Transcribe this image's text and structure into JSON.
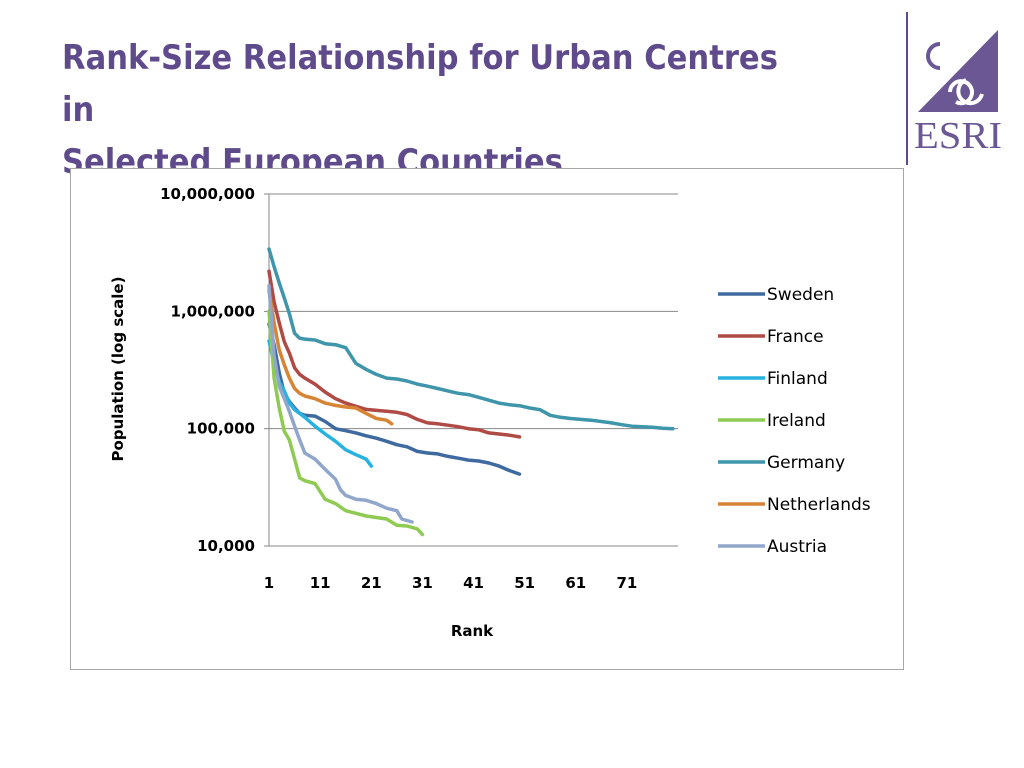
{
  "slide": {
    "title_line1": "Rank-Size Relationship for Urban Centres in",
    "title_line2": "Selected European Countries"
  },
  "logo": {
    "text": "ESRI",
    "color": "#6a5793"
  },
  "chart_data": {
    "type": "line",
    "title": "",
    "xlabel": "Rank",
    "ylabel": "Population (log scale)",
    "xlim": [
      1,
      81
    ],
    "ylim": [
      10000,
      10000000
    ],
    "y_scale": "log",
    "x_ticks": [
      1,
      11,
      21,
      31,
      41,
      51,
      61,
      71
    ],
    "y_ticks": [
      10000,
      100000,
      1000000,
      10000000
    ],
    "y_tick_labels": [
      "10,000",
      "100,000",
      "1,000,000",
      "10,000,000"
    ],
    "grid": "horizontal",
    "legend_position": "right",
    "series": [
      {
        "name": "Sweden",
        "color": "#3e6aa0",
        "points": [
          [
            1,
            780000
          ],
          [
            2,
            520000
          ],
          [
            3,
            300000
          ],
          [
            4,
            200000
          ],
          [
            5,
            170000
          ],
          [
            6,
            150000
          ],
          [
            7,
            135000
          ],
          [
            8,
            130000
          ],
          [
            10,
            128000
          ],
          [
            12,
            115000
          ],
          [
            14,
            100000
          ],
          [
            16,
            96000
          ],
          [
            18,
            92000
          ],
          [
            20,
            87000
          ],
          [
            22,
            83000
          ],
          [
            24,
            78000
          ],
          [
            26,
            73000
          ],
          [
            28,
            70000
          ],
          [
            30,
            64000
          ],
          [
            32,
            62000
          ],
          [
            34,
            61000
          ],
          [
            36,
            58000
          ],
          [
            38,
            56000
          ],
          [
            40,
            54000
          ],
          [
            42,
            53000
          ],
          [
            44,
            51000
          ],
          [
            46,
            48000
          ],
          [
            48,
            44000
          ],
          [
            50,
            41000
          ]
        ]
      },
      {
        "name": "France",
        "color": "#b04a45",
        "points": [
          [
            1,
            2200000
          ],
          [
            2,
            1200000
          ],
          [
            3,
            800000
          ],
          [
            4,
            550000
          ],
          [
            5,
            440000
          ],
          [
            6,
            330000
          ],
          [
            7,
            290000
          ],
          [
            8,
            270000
          ],
          [
            10,
            240000
          ],
          [
            12,
            205000
          ],
          [
            14,
            180000
          ],
          [
            16,
            165000
          ],
          [
            18,
            155000
          ],
          [
            20,
            146000
          ],
          [
            22,
            143000
          ],
          [
            24,
            141000
          ],
          [
            26,
            138000
          ],
          [
            28,
            132000
          ],
          [
            30,
            120000
          ],
          [
            32,
            112000
          ],
          [
            34,
            110000
          ],
          [
            36,
            107000
          ],
          [
            38,
            104000
          ],
          [
            40,
            100000
          ],
          [
            42,
            98000
          ],
          [
            44,
            92000
          ],
          [
            46,
            90000
          ],
          [
            48,
            88000
          ],
          [
            50,
            85000
          ]
        ]
      },
      {
        "name": "Finland",
        "color": "#27b2e0",
        "points": [
          [
            1,
            560000
          ],
          [
            2,
            360000
          ],
          [
            3,
            250000
          ],
          [
            4,
            210000
          ],
          [
            5,
            165000
          ],
          [
            6,
            145000
          ],
          [
            7,
            135000
          ],
          [
            8,
            125000
          ],
          [
            10,
            105000
          ],
          [
            12,
            90000
          ],
          [
            14,
            78000
          ],
          [
            16,
            66000
          ],
          [
            18,
            60000
          ],
          [
            20,
            55000
          ],
          [
            21,
            48000
          ]
        ]
      },
      {
        "name": "Ireland",
        "color": "#8fca52",
        "points": [
          [
            1,
            1000000
          ],
          [
            2,
            270000
          ],
          [
            3,
            150000
          ],
          [
            4,
            95000
          ],
          [
            5,
            80000
          ],
          [
            6,
            55000
          ],
          [
            7,
            38000
          ],
          [
            8,
            36000
          ],
          [
            10,
            34000
          ],
          [
            12,
            25000
          ],
          [
            14,
            23000
          ],
          [
            16,
            20000
          ],
          [
            18,
            19000
          ],
          [
            20,
            18000
          ],
          [
            22,
            17500
          ],
          [
            24,
            17000
          ],
          [
            26,
            15000
          ],
          [
            28,
            14800
          ],
          [
            30,
            14000
          ],
          [
            31,
            12500
          ]
        ]
      },
      {
        "name": "Germany",
        "color": "#3f95aa",
        "points": [
          [
            1,
            3400000
          ],
          [
            2,
            2400000
          ],
          [
            3,
            1750000
          ],
          [
            4,
            1300000
          ],
          [
            5,
            950000
          ],
          [
            6,
            650000
          ],
          [
            7,
            590000
          ],
          [
            8,
            580000
          ],
          [
            10,
            570000
          ],
          [
            12,
            530000
          ],
          [
            14,
            520000
          ],
          [
            16,
            490000
          ],
          [
            18,
            360000
          ],
          [
            20,
            320000
          ],
          [
            22,
            290000
          ],
          [
            24,
            270000
          ],
          [
            26,
            265000
          ],
          [
            28,
            255000
          ],
          [
            30,
            240000
          ],
          [
            32,
            230000
          ],
          [
            34,
            220000
          ],
          [
            36,
            210000
          ],
          [
            38,
            200000
          ],
          [
            40,
            195000
          ],
          [
            42,
            185000
          ],
          [
            44,
            175000
          ],
          [
            46,
            165000
          ],
          [
            48,
            160000
          ],
          [
            50,
            157000
          ],
          [
            52,
            150000
          ],
          [
            54,
            145000
          ],
          [
            56,
            130000
          ],
          [
            58,
            125000
          ],
          [
            60,
            122000
          ],
          [
            62,
            120000
          ],
          [
            64,
            118000
          ],
          [
            66,
            115000
          ],
          [
            68,
            112000
          ],
          [
            70,
            108000
          ],
          [
            72,
            105000
          ],
          [
            74,
            104000
          ],
          [
            76,
            103000
          ],
          [
            78,
            101000
          ],
          [
            80,
            100000
          ]
        ]
      },
      {
        "name": "Netherlands",
        "color": "#d88435",
        "points": [
          [
            1,
            1500000
          ],
          [
            2,
            800000
          ],
          [
            3,
            470000
          ],
          [
            4,
            350000
          ],
          [
            5,
            270000
          ],
          [
            6,
            220000
          ],
          [
            7,
            200000
          ],
          [
            8,
            190000
          ],
          [
            10,
            180000
          ],
          [
            12,
            165000
          ],
          [
            14,
            158000
          ],
          [
            16,
            153000
          ],
          [
            18,
            150000
          ],
          [
            20,
            135000
          ],
          [
            22,
            122000
          ],
          [
            24,
            118000
          ],
          [
            25,
            110000
          ]
        ]
      },
      {
        "name": "Austria",
        "color": "#90a6cb",
        "points": [
          [
            1,
            1650000
          ],
          [
            2,
            420000
          ],
          [
            3,
            230000
          ],
          [
            4,
            180000
          ],
          [
            5,
            140000
          ],
          [
            6,
            105000
          ],
          [
            7,
            80000
          ],
          [
            8,
            62000
          ],
          [
            10,
            55000
          ],
          [
            12,
            45000
          ],
          [
            14,
            37000
          ],
          [
            15,
            30000
          ],
          [
            16,
            27000
          ],
          [
            18,
            25000
          ],
          [
            20,
            24500
          ],
          [
            22,
            23000
          ],
          [
            24,
            21000
          ],
          [
            26,
            20000
          ],
          [
            27,
            17000
          ],
          [
            29,
            16000
          ]
        ]
      }
    ]
  }
}
